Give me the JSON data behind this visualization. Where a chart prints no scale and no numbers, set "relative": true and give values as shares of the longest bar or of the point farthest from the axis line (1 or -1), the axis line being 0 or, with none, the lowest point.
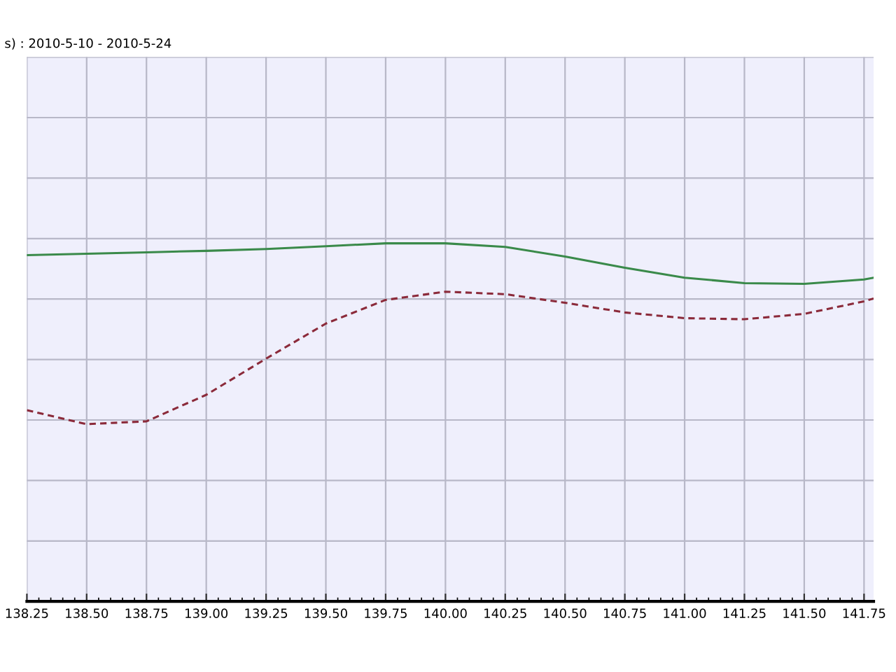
{
  "chart_data": {
    "type": "line",
    "title": "s) : 2010-5-10 - 2010-5-24",
    "relative": true,
    "xlim": [
      138.25,
      141.79
    ],
    "xticks": [
      138.25,
      {
        "value": 138.5,
        "label": "138.50"
      },
      138.75,
      {
        "value": 139,
        "label": "139.00"
      },
      139.25,
      {
        "value": 139.5,
        "label": "139.50"
      },
      139.75,
      {
        "value": 140,
        "label": "140.00"
      },
      140.25,
      {
        "value": 140.5,
        "label": "140.50"
      },
      140.75,
      {
        "value": 141,
        "label": "141.00"
      },
      141.25,
      {
        "value": 141.5,
        "label": "141.50"
      },
      141.75
    ],
    "grid": true,
    "legend": false,
    "marker": "none",
    "series": [
      {
        "color": "#3a8a4a",
        "line_style": "solid",
        "x": [
          138.25,
          138.5,
          138.75,
          139.0,
          139.25,
          139.5,
          139.75,
          140.0,
          140.25,
          140.5,
          140.75,
          141.0,
          141.25,
          141.5,
          141.75,
          141.79
        ],
        "values": [
          0.967,
          0.971,
          0.975,
          0.979,
          0.984,
          0.992,
          1,
          1,
          0.99,
          0.963,
          0.932,
          0.904,
          0.889,
          0.887,
          0.899,
          0.904
        ]
      },
      {
        "color": "#8b2a3a",
        "line_style": "dashed",
        "x": [
          138.25,
          138.5,
          138.75,
          139.0,
          139.25,
          139.5,
          139.75,
          140.0,
          140.25,
          140.5,
          140.75,
          141.0,
          141.25,
          141.5,
          141.75,
          141.79
        ],
        "values": [
          0.534,
          0.495,
          0.503,
          0.577,
          0.678,
          0.776,
          0.842,
          0.865,
          0.858,
          0.834,
          0.807,
          0.791,
          0.788,
          0.803,
          0.838,
          0.846
        ]
      }
    ]
  }
}
